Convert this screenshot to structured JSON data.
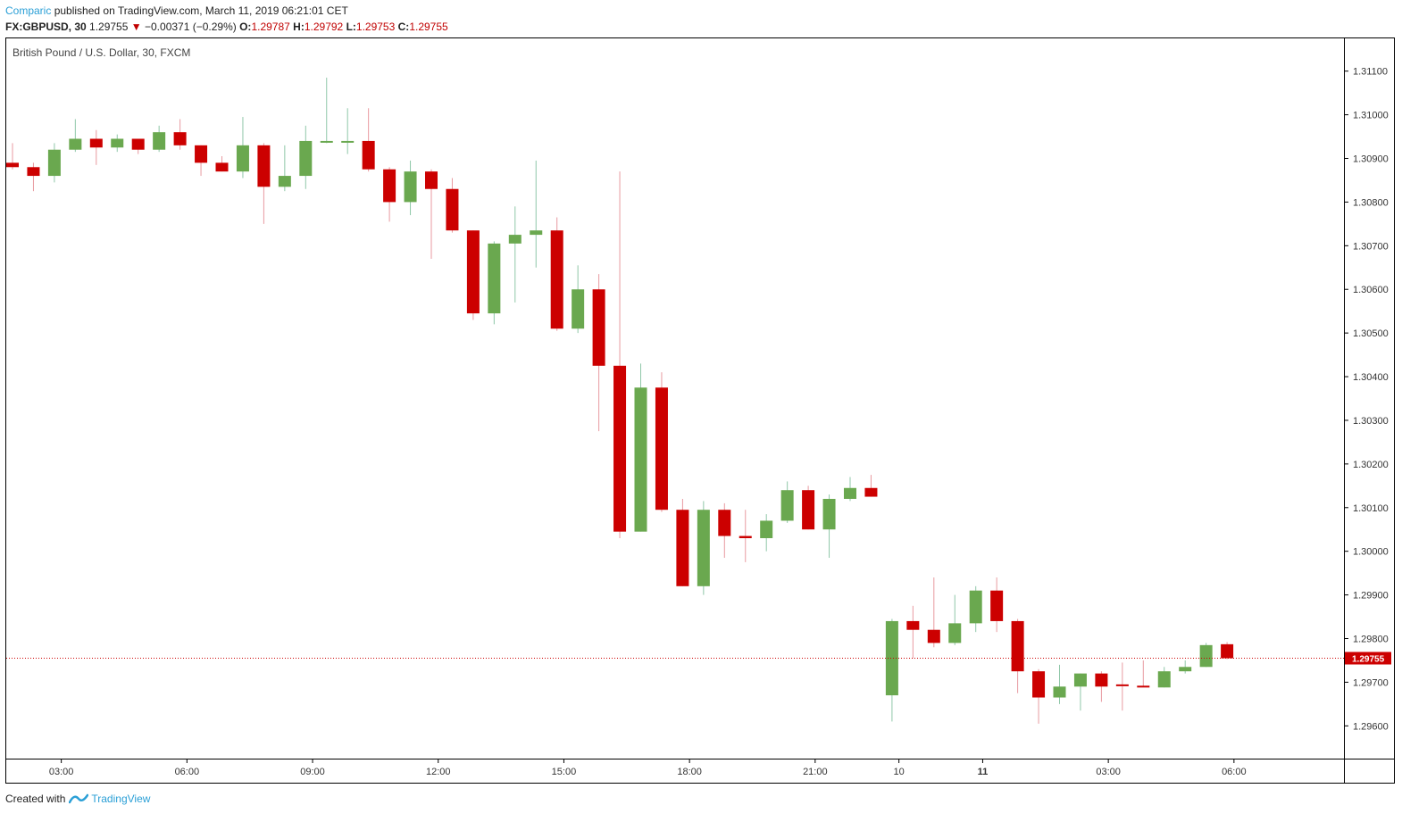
{
  "header": {
    "author": "Comparic",
    "published_text": "published on TradingView.com, March 11, 2019 06:21:01 CET",
    "symbol_label": "FX:GBPUSD, 30",
    "last_price": "1.29755",
    "change": "−0.00371 (−0.29%)",
    "ohlc": [
      {
        "key": "O:",
        "value": "1.29787"
      },
      {
        "key": "H:",
        "value": "1.29792"
      },
      {
        "key": "L:",
        "value": "1.29753"
      },
      {
        "key": "C:",
        "value": "1.29755"
      }
    ]
  },
  "footer": {
    "created_with": "Created with",
    "brand": "TradingView"
  },
  "chart_data": {
    "type": "candlestick",
    "title": "British Pound / U.S. Dollar, 30, FXCM",
    "ylim": [
      1.29525,
      1.31175
    ],
    "y_ticks": [
      "1.31100",
      "1.31000",
      "1.30900",
      "1.30800",
      "1.30700",
      "1.30600",
      "1.30500",
      "1.30400",
      "1.30300",
      "1.30200",
      "1.30100",
      "1.30000",
      "1.29900",
      "1.29800",
      "1.29700",
      "1.29600"
    ],
    "x_ticks": [
      {
        "label": "03:00",
        "index": 2.33,
        "bold": false
      },
      {
        "label": "06:00",
        "index": 8.33,
        "bold": false
      },
      {
        "label": "09:00",
        "index": 14.33,
        "bold": false
      },
      {
        "label": "12:00",
        "index": 20.33,
        "bold": false
      },
      {
        "label": "15:00",
        "index": 26.33,
        "bold": false
      },
      {
        "label": "18:00",
        "index": 32.33,
        "bold": false
      },
      {
        "label": "21:00",
        "index": 38.33,
        "bold": false
      },
      {
        "label": "10",
        "index": 42.33,
        "bold": false
      },
      {
        "label": "11",
        "index": 46.33,
        "bold": true
      },
      {
        "label": "03:00",
        "index": 52.33,
        "bold": false
      },
      {
        "label": "06:00",
        "index": 58.33,
        "bold": false
      }
    ],
    "last_price_label": "1.29755",
    "last_price": 1.29755,
    "colors": {
      "up": "#6aa84f",
      "down": "#cc0000",
      "grid": "#000000",
      "price_line": "#cc0000"
    },
    "candles": [
      {
        "o": 1.3089,
        "h": 1.30935,
        "l": 1.30875,
        "c": 1.3088
      },
      {
        "o": 1.3088,
        "h": 1.3089,
        "l": 1.30825,
        "c": 1.3086
      },
      {
        "o": 1.3086,
        "h": 1.30935,
        "l": 1.30845,
        "c": 1.3092
      },
      {
        "o": 1.3092,
        "h": 1.3099,
        "l": 1.30915,
        "c": 1.30945
      },
      {
        "o": 1.30945,
        "h": 1.30965,
        "l": 1.30885,
        "c": 1.30925
      },
      {
        "o": 1.30925,
        "h": 1.30955,
        "l": 1.30915,
        "c": 1.30945
      },
      {
        "o": 1.30945,
        "h": 1.30945,
        "l": 1.3091,
        "c": 1.3092
      },
      {
        "o": 1.3092,
        "h": 1.30975,
        "l": 1.30915,
        "c": 1.3096
      },
      {
        "o": 1.3096,
        "h": 1.3099,
        "l": 1.3092,
        "c": 1.3093
      },
      {
        "o": 1.3093,
        "h": 1.3093,
        "l": 1.3086,
        "c": 1.3089
      },
      {
        "o": 1.3089,
        "h": 1.30905,
        "l": 1.3087,
        "c": 1.3087
      },
      {
        "o": 1.3087,
        "h": 1.30995,
        "l": 1.30855,
        "c": 1.3093
      },
      {
        "o": 1.3093,
        "h": 1.30935,
        "l": 1.3075,
        "c": 1.30835
      },
      {
        "o": 1.30835,
        "h": 1.3093,
        "l": 1.30825,
        "c": 1.3086
      },
      {
        "o": 1.3086,
        "h": 1.30975,
        "l": 1.3083,
        "c": 1.3094
      },
      {
        "o": 1.3094,
        "h": 1.31085,
        "l": 1.30935,
        "c": 1.3094
      },
      {
        "o": 1.3094,
        "h": 1.31015,
        "l": 1.3091,
        "c": 1.3094
      },
      {
        "o": 1.3094,
        "h": 1.31015,
        "l": 1.3087,
        "c": 1.30875
      },
      {
        "o": 1.30875,
        "h": 1.3088,
        "l": 1.30755,
        "c": 1.308
      },
      {
        "o": 1.308,
        "h": 1.30895,
        "l": 1.3077,
        "c": 1.3087
      },
      {
        "o": 1.3087,
        "h": 1.30875,
        "l": 1.3067,
        "c": 1.3083
      },
      {
        "o": 1.3083,
        "h": 1.30855,
        "l": 1.3073,
        "c": 1.30735
      },
      {
        "o": 1.30735,
        "h": 1.30735,
        "l": 1.3053,
        "c": 1.30545
      },
      {
        "o": 1.30545,
        "h": 1.3071,
        "l": 1.3052,
        "c": 1.30705
      },
      {
        "o": 1.30705,
        "h": 1.3079,
        "l": 1.3057,
        "c": 1.30725
      },
      {
        "o": 1.30725,
        "h": 1.30895,
        "l": 1.3065,
        "c": 1.30735
      },
      {
        "o": 1.30735,
        "h": 1.30765,
        "l": 1.30505,
        "c": 1.3051
      },
      {
        "o": 1.3051,
        "h": 1.30655,
        "l": 1.305,
        "c": 1.306
      },
      {
        "o": 1.306,
        "h": 1.30635,
        "l": 1.30275,
        "c": 1.30425
      },
      {
        "o": 1.30425,
        "h": 1.3087,
        "l": 1.3003,
        "c": 1.30045
      },
      {
        "o": 1.30045,
        "h": 1.3043,
        "l": 1.30045,
        "c": 1.30375
      },
      {
        "o": 1.30375,
        "h": 1.3041,
        "l": 1.3009,
        "c": 1.30095
      },
      {
        "o": 1.30095,
        "h": 1.3012,
        "l": 1.2992,
        "c": 1.2992
      },
      {
        "o": 1.2992,
        "h": 1.30115,
        "l": 1.299,
        "c": 1.30095
      },
      {
        "o": 1.30095,
        "h": 1.3011,
        "l": 1.29985,
        "c": 1.30035
      },
      {
        "o": 1.30035,
        "h": 1.30095,
        "l": 1.29975,
        "c": 1.3003
      },
      {
        "o": 1.3003,
        "h": 1.30085,
        "l": 1.3,
        "c": 1.3007
      },
      {
        "o": 1.3007,
        "h": 1.3016,
        "l": 1.30065,
        "c": 1.3014
      },
      {
        "o": 1.3014,
        "h": 1.3015,
        "l": 1.3005,
        "c": 1.3005
      },
      {
        "o": 1.3005,
        "h": 1.3013,
        "l": 1.29985,
        "c": 1.3012
      },
      {
        "o": 1.3012,
        "h": 1.3017,
        "l": 1.30115,
        "c": 1.30145
      },
      {
        "o": 1.30145,
        "h": 1.30175,
        "l": 1.30125,
        "c": 1.30125
      },
      {
        "o": 1.2967,
        "h": 1.29845,
        "l": 1.2961,
        "c": 1.2984
      },
      {
        "o": 1.2984,
        "h": 1.29875,
        "l": 1.29755,
        "c": 1.2982
      },
      {
        "o": 1.2982,
        "h": 1.2994,
        "l": 1.2978,
        "c": 1.2979
      },
      {
        "o": 1.2979,
        "h": 1.299,
        "l": 1.29785,
        "c": 1.29835
      },
      {
        "o": 1.29835,
        "h": 1.2992,
        "l": 1.29815,
        "c": 1.2991
      },
      {
        "o": 1.2991,
        "h": 1.2994,
        "l": 1.29815,
        "c": 1.2984
      },
      {
        "o": 1.2984,
        "h": 1.29845,
        "l": 1.29675,
        "c": 1.29725
      },
      {
        "o": 1.29725,
        "h": 1.2973,
        "l": 1.29605,
        "c": 1.29665
      },
      {
        "o": 1.29665,
        "h": 1.2974,
        "l": 1.2965,
        "c": 1.2969
      },
      {
        "o": 1.2969,
        "h": 1.2972,
        "l": 1.29635,
        "c": 1.2972
      },
      {
        "o": 1.2972,
        "h": 1.29725,
        "l": 1.29655,
        "c": 1.2969
      },
      {
        "o": 1.29695,
        "h": 1.29745,
        "l": 1.29635,
        "c": 1.29692
      },
      {
        "o": 1.29692,
        "h": 1.2975,
        "l": 1.2969,
        "c": 1.29688
      },
      {
        "o": 1.29688,
        "h": 1.29735,
        "l": 1.29688,
        "c": 1.29725
      },
      {
        "o": 1.29725,
        "h": 1.2975,
        "l": 1.2972,
        "c": 1.29735
      },
      {
        "o": 1.29735,
        "h": 1.2979,
        "l": 1.29735,
        "c": 1.29785
      },
      {
        "o": 1.29787,
        "h": 1.29792,
        "l": 1.29753,
        "c": 1.29755
      }
    ]
  }
}
